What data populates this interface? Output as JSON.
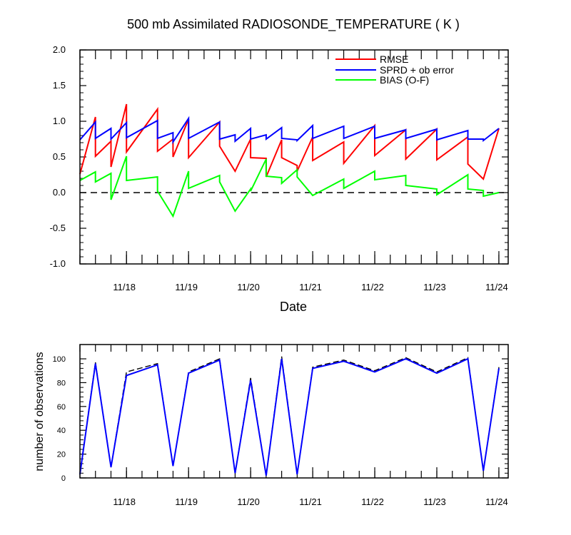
{
  "title": "500 mb Assimilated RADIOSONDE_TEMPERATURE ( K )",
  "colors": {
    "rmse": "#ff0000",
    "sprd": "#0000ff",
    "bias": "#00ff00",
    "nobs_used": "#0000ff",
    "nobs_poss": "#000000"
  },
  "chart_data": [
    {
      "type": "line",
      "xlabel": "Date",
      "ylabel": "",
      "xlim": [
        0,
        6.9
      ],
      "ylim": [
        -1.0,
        2.0
      ],
      "yticks": [
        -1.0,
        -0.5,
        0.0,
        0.5,
        1.0,
        1.5,
        2.0
      ],
      "ytick_labels": [
        "-1.0",
        "-0.5",
        "0.0",
        "0.5",
        "1.0",
        "1.5",
        "2.0"
      ],
      "xticks": [
        0.75,
        1.75,
        2.75,
        3.75,
        4.75,
        5.75,
        6.75
      ],
      "xtick_labels": [
        "11/18",
        "11/19",
        "11/20",
        "11/21",
        "11/22",
        "11/23",
        "11/24"
      ],
      "legend_position": "top-right",
      "zero_line": true,
      "series": [
        {
          "name": "RMSE",
          "color": "#ff0000",
          "points": [
            [
              0.0,
              0.26
            ],
            [
              0.25,
              1.06
            ],
            [
              0.25,
              0.51
            ],
            [
              0.5,
              0.72
            ],
            [
              0.5,
              0.36
            ],
            [
              0.75,
              1.24
            ],
            [
              0.75,
              0.57
            ],
            [
              1.25,
              1.17
            ],
            [
              1.25,
              0.58
            ],
            [
              1.5,
              0.75
            ],
            [
              1.5,
              0.5
            ],
            [
              1.75,
              1.03
            ],
            [
              1.75,
              0.49
            ],
            [
              2.25,
              0.99
            ],
            [
              2.25,
              0.65
            ],
            [
              2.5,
              0.3
            ],
            [
              2.75,
              0.75
            ],
            [
              2.75,
              0.49
            ],
            [
              3.0,
              0.48
            ],
            [
              3.0,
              0.22
            ],
            [
              3.25,
              0.74
            ],
            [
              3.25,
              0.49
            ],
            [
              3.5,
              0.38
            ],
            [
              3.5,
              0.3
            ],
            [
              3.75,
              0.78
            ],
            [
              3.75,
              0.45
            ],
            [
              4.25,
              0.71
            ],
            [
              4.25,
              0.41
            ],
            [
              4.75,
              0.94
            ],
            [
              4.75,
              0.52
            ],
            [
              5.25,
              0.88
            ],
            [
              5.25,
              0.47
            ],
            [
              5.75,
              0.89
            ],
            [
              5.75,
              0.46
            ],
            [
              6.25,
              0.78
            ],
            [
              6.25,
              0.4
            ],
            [
              6.5,
              0.19
            ],
            [
              6.75,
              0.9
            ]
          ]
        },
        {
          "name": "SPRD + ob error",
          "color": "#0000ff",
          "points": [
            [
              0.0,
              0.74
            ],
            [
              0.25,
              0.99
            ],
            [
              0.25,
              0.76
            ],
            [
              0.5,
              0.9
            ],
            [
              0.5,
              0.75
            ],
            [
              0.75,
              0.98
            ],
            [
              0.75,
              0.77
            ],
            [
              1.25,
              1.01
            ],
            [
              1.25,
              0.76
            ],
            [
              1.5,
              0.84
            ],
            [
              1.5,
              0.71
            ],
            [
              1.75,
              1.04
            ],
            [
              1.75,
              0.76
            ],
            [
              2.25,
              0.99
            ],
            [
              2.25,
              0.75
            ],
            [
              2.5,
              0.81
            ],
            [
              2.5,
              0.72
            ],
            [
              2.75,
              0.9
            ],
            [
              2.75,
              0.75
            ],
            [
              3.0,
              0.81
            ],
            [
              3.0,
              0.75
            ],
            [
              3.25,
              0.91
            ],
            [
              3.25,
              0.76
            ],
            [
              3.5,
              0.74
            ],
            [
              3.5,
              0.73
            ],
            [
              3.75,
              0.94
            ],
            [
              3.75,
              0.76
            ],
            [
              4.25,
              0.93
            ],
            [
              4.25,
              0.76
            ],
            [
              4.75,
              0.93
            ],
            [
              4.75,
              0.76
            ],
            [
              5.25,
              0.88
            ],
            [
              5.25,
              0.76
            ],
            [
              5.75,
              0.89
            ],
            [
              5.75,
              0.74
            ],
            [
              6.25,
              0.87
            ],
            [
              6.25,
              0.75
            ],
            [
              6.5,
              0.75
            ],
            [
              6.5,
              0.73
            ],
            [
              6.75,
              0.9
            ]
          ]
        },
        {
          "name": "BIAS (O-F)",
          "color": "#00ff00",
          "points": [
            [
              0.0,
              0.17
            ],
            [
              0.25,
              0.29
            ],
            [
              0.25,
              0.15
            ],
            [
              0.5,
              0.27
            ],
            [
              0.5,
              -0.1
            ],
            [
              0.75,
              0.51
            ],
            [
              0.75,
              0.17
            ],
            [
              1.25,
              0.22
            ],
            [
              1.25,
              0.02
            ],
            [
              1.5,
              -0.33
            ],
            [
              1.75,
              0.3
            ],
            [
              1.75,
              0.06
            ],
            [
              2.25,
              0.24
            ],
            [
              2.25,
              0.15
            ],
            [
              2.5,
              -0.26
            ],
            [
              2.75,
              0.05
            ],
            [
              2.75,
              0.02
            ],
            [
              3.0,
              0.47
            ],
            [
              3.0,
              0.23
            ],
            [
              3.25,
              0.21
            ],
            [
              3.25,
              0.13
            ],
            [
              3.5,
              0.32
            ],
            [
              3.5,
              0.22
            ],
            [
              3.75,
              -0.04
            ],
            [
              4.25,
              0.19
            ],
            [
              4.25,
              0.06
            ],
            [
              4.75,
              0.3
            ],
            [
              4.75,
              0.18
            ],
            [
              5.25,
              0.24
            ],
            [
              5.25,
              0.1
            ],
            [
              5.75,
              0.05
            ],
            [
              5.75,
              -0.03
            ],
            [
              6.25,
              0.25
            ],
            [
              6.25,
              0.05
            ],
            [
              6.5,
              0.03
            ],
            [
              6.5,
              -0.05
            ],
            [
              6.75,
              0.0
            ]
          ]
        }
      ]
    },
    {
      "type": "line",
      "xlabel": "",
      "ylabel": "number of observations",
      "xlim": [
        0,
        6.9
      ],
      "ylim": [
        0,
        112
      ],
      "yticks": [
        0,
        20,
        40,
        60,
        80,
        100
      ],
      "ytick_labels": [
        "0",
        "20",
        "40",
        "60",
        "80",
        "100"
      ],
      "xticks": [
        0.75,
        1.75,
        2.75,
        3.75,
        4.75,
        5.75,
        6.75
      ],
      "xtick_labels": [
        "11/18",
        "11/19",
        "11/20",
        "11/21",
        "11/22",
        "11/23",
        "11/24"
      ],
      "series": [
        {
          "color": "#000000",
          "dash": true,
          "points": [
            [
              0.0,
              4
            ],
            [
              0.25,
              97
            ],
            [
              0.5,
              9
            ],
            [
              0.75,
              89
            ],
            [
              1.25,
              96
            ],
            [
              1.5,
              10
            ],
            [
              1.75,
              89
            ],
            [
              2.25,
              100
            ],
            [
              2.5,
              4
            ],
            [
              2.75,
              84
            ],
            [
              3.0,
              2
            ],
            [
              3.25,
              102
            ],
            [
              3.5,
              3
            ],
            [
              3.75,
              93
            ],
            [
              4.25,
              99
            ],
            [
              4.75,
              90
            ],
            [
              5.25,
              101
            ],
            [
              5.75,
              89
            ],
            [
              6.25,
              101
            ],
            [
              6.5,
              6
            ],
            [
              6.75,
              93
            ]
          ]
        },
        {
          "color": "#0000ff",
          "points": [
            [
              0.0,
              3
            ],
            [
              0.25,
              96
            ],
            [
              0.5,
              9
            ],
            [
              0.75,
              86
            ],
            [
              1.25,
              95
            ],
            [
              1.5,
              10
            ],
            [
              1.75,
              88
            ],
            [
              2.25,
              99
            ],
            [
              2.5,
              4
            ],
            [
              2.75,
              82
            ],
            [
              3.0,
              2
            ],
            [
              3.25,
              100
            ],
            [
              3.5,
              3
            ],
            [
              3.75,
              92
            ],
            [
              4.25,
              98
            ],
            [
              4.75,
              89
            ],
            [
              5.25,
              100
            ],
            [
              5.75,
              88
            ],
            [
              6.25,
              100
            ],
            [
              6.5,
              6
            ],
            [
              6.75,
              92
            ]
          ]
        }
      ]
    }
  ]
}
